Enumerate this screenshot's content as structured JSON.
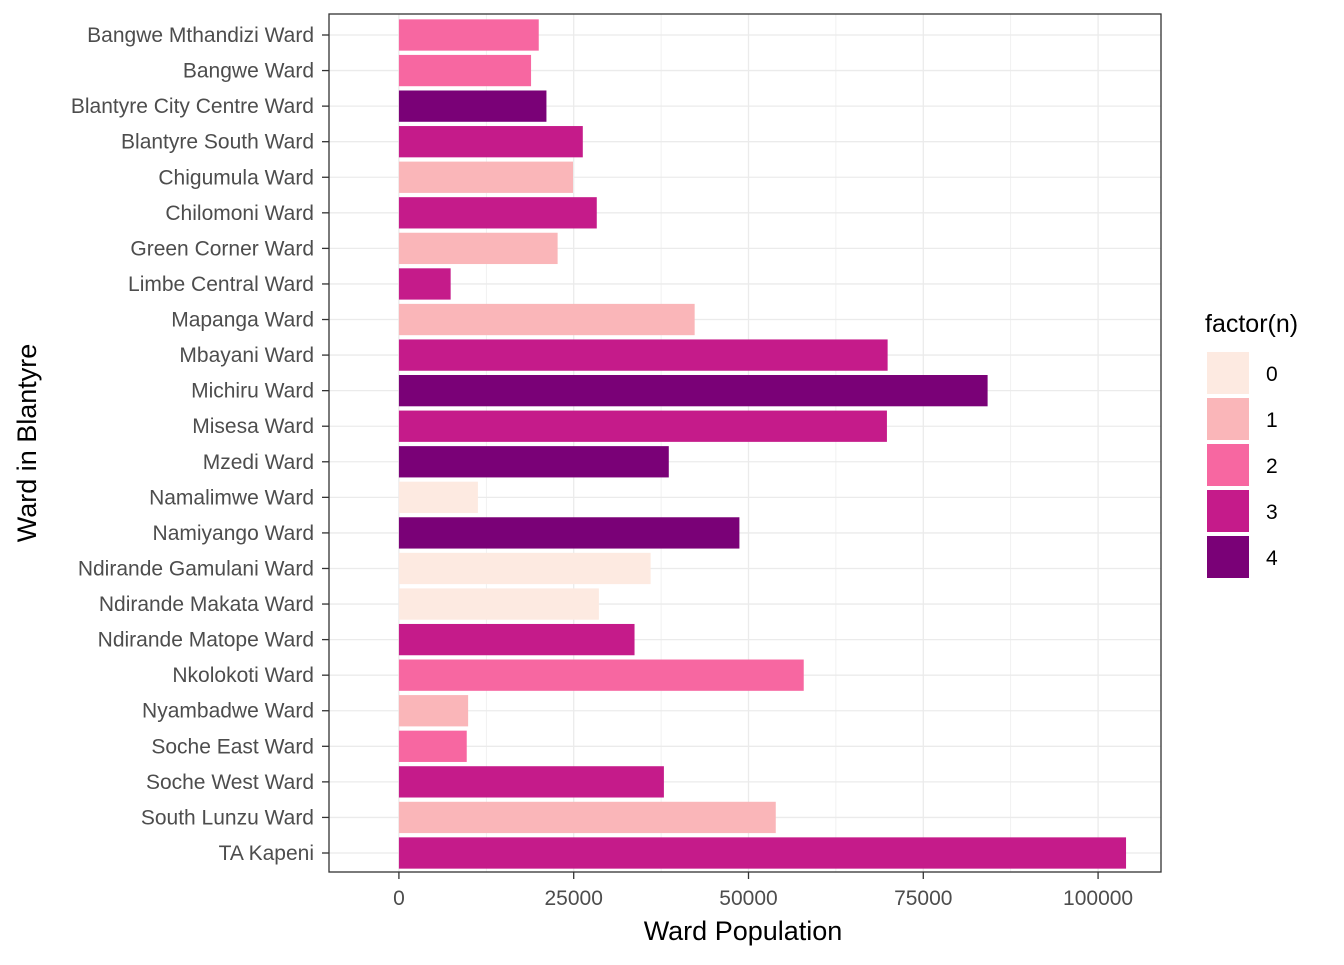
{
  "chart_data": {
    "type": "bar",
    "orientation": "horizontal",
    "xlabel": "Ward Population",
    "ylabel": "Ward in Blantyre",
    "xlim": [
      -10000,
      109000
    ],
    "xticks": [
      0,
      25000,
      50000,
      75000,
      100000
    ],
    "xtick_labels": [
      "0",
      "25000",
      "50000",
      "75000",
      "100000"
    ],
    "grid": true,
    "legend": {
      "title": "factor(n)",
      "position": "right",
      "entries": [
        {
          "label": "0",
          "color": "#FDEAE1"
        },
        {
          "label": "1",
          "color": "#FAB6B9"
        },
        {
          "label": "2",
          "color": "#F767A1"
        },
        {
          "label": "3",
          "color": "#C51B8A"
        },
        {
          "label": "4",
          "color": "#7A0177"
        }
      ]
    },
    "categories": [
      "Bangwe Mthandizi Ward",
      "Bangwe Ward",
      "Blantyre City Centre Ward",
      "Blantyre South Ward",
      "Chigumula Ward",
      "Chilomoni Ward",
      "Green Corner Ward",
      "Limbe Central Ward",
      "Mapanga Ward",
      "Mbayani Ward",
      "Michiru Ward",
      "Misesa Ward",
      "Mzedi Ward",
      "Namalimwe Ward",
      "Namiyango Ward",
      "Ndirande Gamulani Ward",
      "Ndirande Makata Ward",
      "Ndirande Matope Ward",
      "Nkolokoti Ward",
      "Nyambadwe Ward",
      "Soche East Ward",
      "Soche West Ward",
      "South Lunzu Ward",
      "TA Kapeni"
    ],
    "values": [
      20000,
      18900,
      21100,
      26300,
      24900,
      28300,
      22700,
      7400,
      42300,
      69900,
      84200,
      69800,
      38600,
      11300,
      48700,
      36000,
      28600,
      33700,
      57900,
      9900,
      9700,
      37900,
      53900,
      104000
    ],
    "groups": [
      2,
      2,
      4,
      3,
      1,
      3,
      1,
      3,
      1,
      3,
      4,
      3,
      4,
      0,
      4,
      0,
      0,
      3,
      2,
      1,
      2,
      3,
      1,
      3
    ]
  }
}
